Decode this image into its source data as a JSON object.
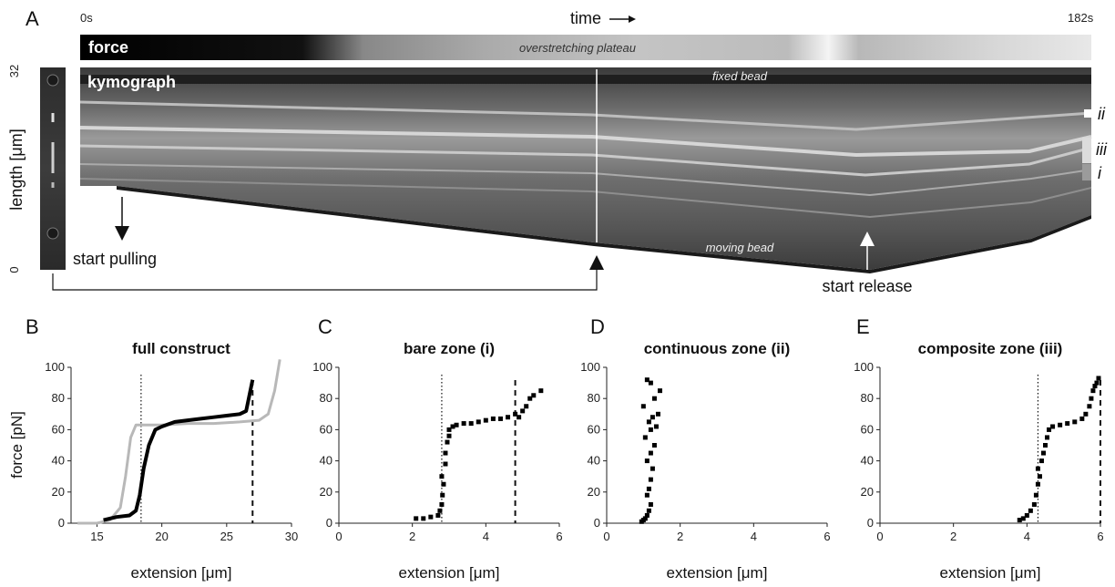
{
  "panelA": {
    "letter": "A",
    "time_start": "0s",
    "time_label": "time",
    "time_end": "182s",
    "force_label": "force",
    "plateau_label": "overstretching plateau",
    "kymo_label": "kymograph",
    "fixed_bead": "fixed bead",
    "moving_bead": "moving bead",
    "length_top": "32",
    "length_bottom": "0",
    "length_axis": "length [μm]",
    "start_pulling": "start pulling",
    "start_release": "start release",
    "zones": [
      "ii",
      "iii",
      "i"
    ]
  },
  "chart_data": [
    {
      "type": "line",
      "panel": "B",
      "title": "full construct",
      "xlabel": "extension [μm]",
      "ylabel": "force [pN]",
      "xlim": [
        13,
        30
      ],
      "ylim": [
        0,
        100
      ],
      "xticks": [
        15,
        20,
        25,
        30
      ],
      "yticks": [
        0,
        20,
        40,
        60,
        80,
        100
      ],
      "vlines": {
        "dotted": 18.4,
        "dashed": 27.0
      },
      "series": [
        {
          "color": "#b8b8b8",
          "x": [
            13.5,
            15.0,
            16.0,
            16.8,
            17.2,
            17.6,
            18.0,
            18.5,
            20,
            22,
            24,
            26,
            27.5,
            28.2,
            28.7,
            29.1
          ],
          "y": [
            0,
            0,
            2,
            10,
            30,
            55,
            63,
            63,
            63,
            64,
            64,
            65,
            66,
            70,
            85,
            105
          ]
        },
        {
          "color": "#000000",
          "x": [
            15.5,
            16.5,
            17.5,
            18.0,
            18.3,
            18.6,
            19.0,
            19.5,
            20.0,
            21.0,
            22.0,
            23.0,
            24.0,
            25.0,
            26.0,
            26.5,
            27.0
          ],
          "y": [
            2,
            4,
            5,
            8,
            18,
            35,
            50,
            60,
            62,
            65,
            66,
            67,
            68,
            69,
            70,
            72,
            92
          ]
        }
      ]
    },
    {
      "type": "scatter",
      "panel": "C",
      "title": "bare zone (i)",
      "xlabel": "extension [μm]",
      "xlim": [
        0,
        6
      ],
      "ylim": [
        0,
        100
      ],
      "xticks": [
        0,
        2,
        4,
        6
      ],
      "yticks": [
        0,
        20,
        40,
        60,
        80,
        100
      ],
      "vlines": {
        "dotted": 2.8,
        "dashed": 4.8
      },
      "x": [
        2.1,
        2.3,
        2.5,
        2.7,
        2.75,
        2.8,
        2.82,
        2.85,
        2.8,
        2.9,
        2.9,
        2.95,
        3.0,
        3.0,
        3.1,
        3.2,
        3.4,
        3.6,
        3.8,
        4.0,
        4.2,
        4.4,
        4.6,
        4.8,
        4.9,
        5.0,
        5.1,
        5.2,
        5.3,
        5.5
      ],
      "y": [
        3,
        3,
        4,
        5,
        8,
        12,
        18,
        25,
        30,
        38,
        45,
        52,
        56,
        60,
        62,
        63,
        64,
        64,
        65,
        66,
        67,
        67,
        68,
        70,
        68,
        72,
        75,
        80,
        82,
        85
      ]
    },
    {
      "type": "scatter",
      "panel": "D",
      "title": "continuous zone (ii)",
      "xlabel": "extension [μm]",
      "xlim": [
        0,
        6
      ],
      "ylim": [
        0,
        100
      ],
      "xticks": [
        0,
        2,
        4,
        6
      ],
      "yticks": [
        0,
        20,
        40,
        60,
        80,
        100
      ],
      "x": [
        0.95,
        1.0,
        1.05,
        1.1,
        1.15,
        1.2,
        1.1,
        1.15,
        1.2,
        1.25,
        1.1,
        1.2,
        1.3,
        1.05,
        1.2,
        1.35,
        1.15,
        1.25,
        1.4,
        1.0,
        1.3,
        1.45,
        1.2,
        1.1
      ],
      "y": [
        1,
        2,
        3,
        5,
        8,
        12,
        18,
        22,
        28,
        35,
        40,
        45,
        50,
        55,
        60,
        62,
        65,
        68,
        70,
        75,
        80,
        85,
        90,
        92
      ]
    },
    {
      "type": "scatter",
      "panel": "E",
      "title": "composite zone (iii)",
      "xlabel": "extension [μm]",
      "xlim": [
        0,
        6
      ],
      "ylim": [
        0,
        100
      ],
      "xticks": [
        0,
        2,
        4,
        6
      ],
      "yticks": [
        0,
        20,
        40,
        60,
        80,
        100
      ],
      "vlines": {
        "dotted": 4.3,
        "dashed": 6.0
      },
      "x": [
        3.8,
        3.9,
        4.0,
        4.1,
        4.2,
        4.25,
        4.3,
        4.35,
        4.3,
        4.4,
        4.45,
        4.5,
        4.55,
        4.6,
        4.7,
        4.9,
        5.1,
        5.3,
        5.5,
        5.6,
        5.7,
        5.75,
        5.8,
        5.85,
        5.9,
        5.95
      ],
      "y": [
        2,
        3,
        5,
        8,
        12,
        18,
        25,
        30,
        35,
        40,
        45,
        50,
        55,
        60,
        62,
        63,
        64,
        65,
        67,
        70,
        75,
        80,
        85,
        88,
        90,
        93
      ]
    }
  ]
}
